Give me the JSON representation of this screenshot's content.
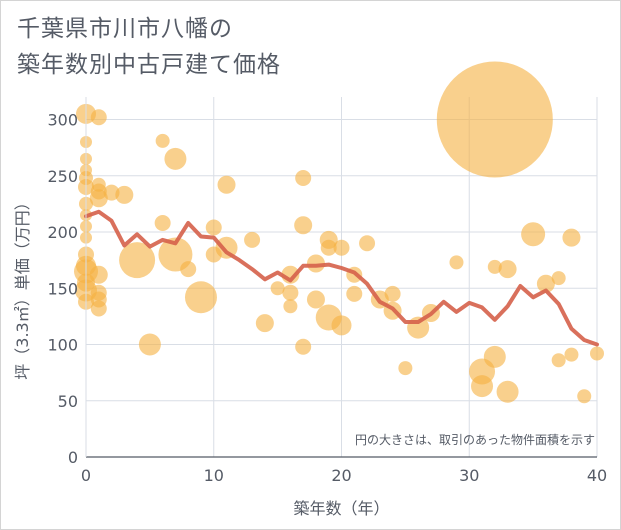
{
  "title_lines": [
    "千葉県市川市八幡の",
    "築年数別中古戸建て価格"
  ],
  "chart_data": {
    "type": "scatter",
    "xlabel": "築年数（年）",
    "ylabel": "坪（3.3㎡）単価（万円）",
    "xlim": [
      0,
      40
    ],
    "ylim": [
      0,
      320
    ],
    "x_ticks": [
      "0",
      "10",
      "20",
      "30",
      "40"
    ],
    "y_ticks": [
      "0",
      "50",
      "100",
      "150",
      "200",
      "250",
      "300"
    ],
    "grid": true,
    "note": "円の大きさは、取引のあった物件面積を示す",
    "colors": {
      "bubble": "#f5b041",
      "line": "#d5614a",
      "grid": "#d9dee6"
    },
    "bubbles": [
      {
        "x": 0,
        "y": 305,
        "size": 10
      },
      {
        "x": 1,
        "y": 302,
        "size": 8
      },
      {
        "x": 0,
        "y": 280,
        "size": 6
      },
      {
        "x": 0,
        "y": 265,
        "size": 6
      },
      {
        "x": 0,
        "y": 255,
        "size": 6
      },
      {
        "x": 0,
        "y": 248,
        "size": 7
      },
      {
        "x": 0,
        "y": 240,
        "size": 8
      },
      {
        "x": 1,
        "y": 242,
        "size": 7
      },
      {
        "x": 1,
        "y": 236,
        "size": 8
      },
      {
        "x": 1,
        "y": 230,
        "size": 9
      },
      {
        "x": 2,
        "y": 235,
        "size": 8
      },
      {
        "x": 3,
        "y": 233,
        "size": 9
      },
      {
        "x": 0,
        "y": 225,
        "size": 7
      },
      {
        "x": 0,
        "y": 215,
        "size": 6
      },
      {
        "x": 0,
        "y": 205,
        "size": 6
      },
      {
        "x": 0,
        "y": 195,
        "size": 6
      },
      {
        "x": 0,
        "y": 180,
        "size": 8
      },
      {
        "x": 0,
        "y": 170,
        "size": 10
      },
      {
        "x": 0,
        "y": 165,
        "size": 12
      },
      {
        "x": 1,
        "y": 162,
        "size": 9
      },
      {
        "x": 0,
        "y": 155,
        "size": 9
      },
      {
        "x": 0,
        "y": 148,
        "size": 11
      },
      {
        "x": 1,
        "y": 146,
        "size": 8
      },
      {
        "x": 1,
        "y": 140,
        "size": 8
      },
      {
        "x": 0,
        "y": 138,
        "size": 8
      },
      {
        "x": 1,
        "y": 132,
        "size": 8
      },
      {
        "x": 4,
        "y": 175,
        "size": 18
      },
      {
        "x": 5,
        "y": 100,
        "size": 11
      },
      {
        "x": 6,
        "y": 281,
        "size": 7
      },
      {
        "x": 6,
        "y": 208,
        "size": 8
      },
      {
        "x": 7,
        "y": 265,
        "size": 11
      },
      {
        "x": 7,
        "y": 180,
        "size": 17
      },
      {
        "x": 8,
        "y": 167,
        "size": 8
      },
      {
        "x": 9,
        "y": 142,
        "size": 16
      },
      {
        "x": 10,
        "y": 204,
        "size": 8
      },
      {
        "x": 10,
        "y": 180,
        "size": 8
      },
      {
        "x": 11,
        "y": 242,
        "size": 9
      },
      {
        "x": 11,
        "y": 186,
        "size": 11
      },
      {
        "x": 13,
        "y": 193,
        "size": 8
      },
      {
        "x": 14,
        "y": 119,
        "size": 9
      },
      {
        "x": 15,
        "y": 150,
        "size": 7
      },
      {
        "x": 16,
        "y": 162,
        "size": 9
      },
      {
        "x": 16,
        "y": 146,
        "size": 8
      },
      {
        "x": 16,
        "y": 134,
        "size": 7
      },
      {
        "x": 17,
        "y": 248,
        "size": 8
      },
      {
        "x": 17,
        "y": 206,
        "size": 9
      },
      {
        "x": 17,
        "y": 98,
        "size": 8
      },
      {
        "x": 18,
        "y": 172,
        "size": 9
      },
      {
        "x": 18,
        "y": 140,
        "size": 9
      },
      {
        "x": 19,
        "y": 193,
        "size": 9
      },
      {
        "x": 19,
        "y": 186,
        "size": 8
      },
      {
        "x": 19,
        "y": 124,
        "size": 13
      },
      {
        "x": 20,
        "y": 186,
        "size": 8
      },
      {
        "x": 20,
        "y": 117,
        "size": 10
      },
      {
        "x": 21,
        "y": 162,
        "size": 8
      },
      {
        "x": 21,
        "y": 145,
        "size": 8
      },
      {
        "x": 22,
        "y": 190,
        "size": 8
      },
      {
        "x": 23,
        "y": 140,
        "size": 9
      },
      {
        "x": 24,
        "y": 145,
        "size": 8
      },
      {
        "x": 24,
        "y": 130,
        "size": 9
      },
      {
        "x": 25,
        "y": 79,
        "size": 7
      },
      {
        "x": 26,
        "y": 115,
        "size": 11
      },
      {
        "x": 27,
        "y": 128,
        "size": 9
      },
      {
        "x": 29,
        "y": 173,
        "size": 7
      },
      {
        "x": 31,
        "y": 76,
        "size": 13
      },
      {
        "x": 31,
        "y": 63,
        "size": 11
      },
      {
        "x": 32,
        "y": 300,
        "size": 58
      },
      {
        "x": 32,
        "y": 169,
        "size": 7
      },
      {
        "x": 32,
        "y": 89,
        "size": 11
      },
      {
        "x": 33,
        "y": 167,
        "size": 9
      },
      {
        "x": 33,
        "y": 58,
        "size": 11
      },
      {
        "x": 35,
        "y": 198,
        "size": 12
      },
      {
        "x": 36,
        "y": 154,
        "size": 9
      },
      {
        "x": 37,
        "y": 159,
        "size": 7
      },
      {
        "x": 37,
        "y": 86,
        "size": 7
      },
      {
        "x": 38,
        "y": 195,
        "size": 9
      },
      {
        "x": 38,
        "y": 91,
        "size": 7
      },
      {
        "x": 39,
        "y": 54,
        "size": 7
      },
      {
        "x": 40,
        "y": 92,
        "size": 7
      }
    ],
    "trend": {
      "x": [
        0,
        1,
        2,
        3,
        4,
        5,
        6,
        7,
        8,
        9,
        10,
        11,
        12,
        13,
        14,
        15,
        16,
        17,
        18,
        19,
        20,
        21,
        22,
        23,
        24,
        25,
        26,
        27,
        28,
        29,
        30,
        31,
        32,
        33,
        34,
        35,
        36,
        37,
        38,
        39,
        40
      ],
      "y": [
        214,
        218,
        210,
        188,
        198,
        187,
        193,
        190,
        208,
        196,
        195,
        182,
        175,
        167,
        158,
        164,
        157,
        170,
        170,
        171,
        168,
        164,
        154,
        138,
        132,
        120,
        120,
        127,
        138,
        129,
        137,
        133,
        122,
        134,
        152,
        142,
        148,
        136,
        114,
        104,
        100
      ]
    }
  }
}
